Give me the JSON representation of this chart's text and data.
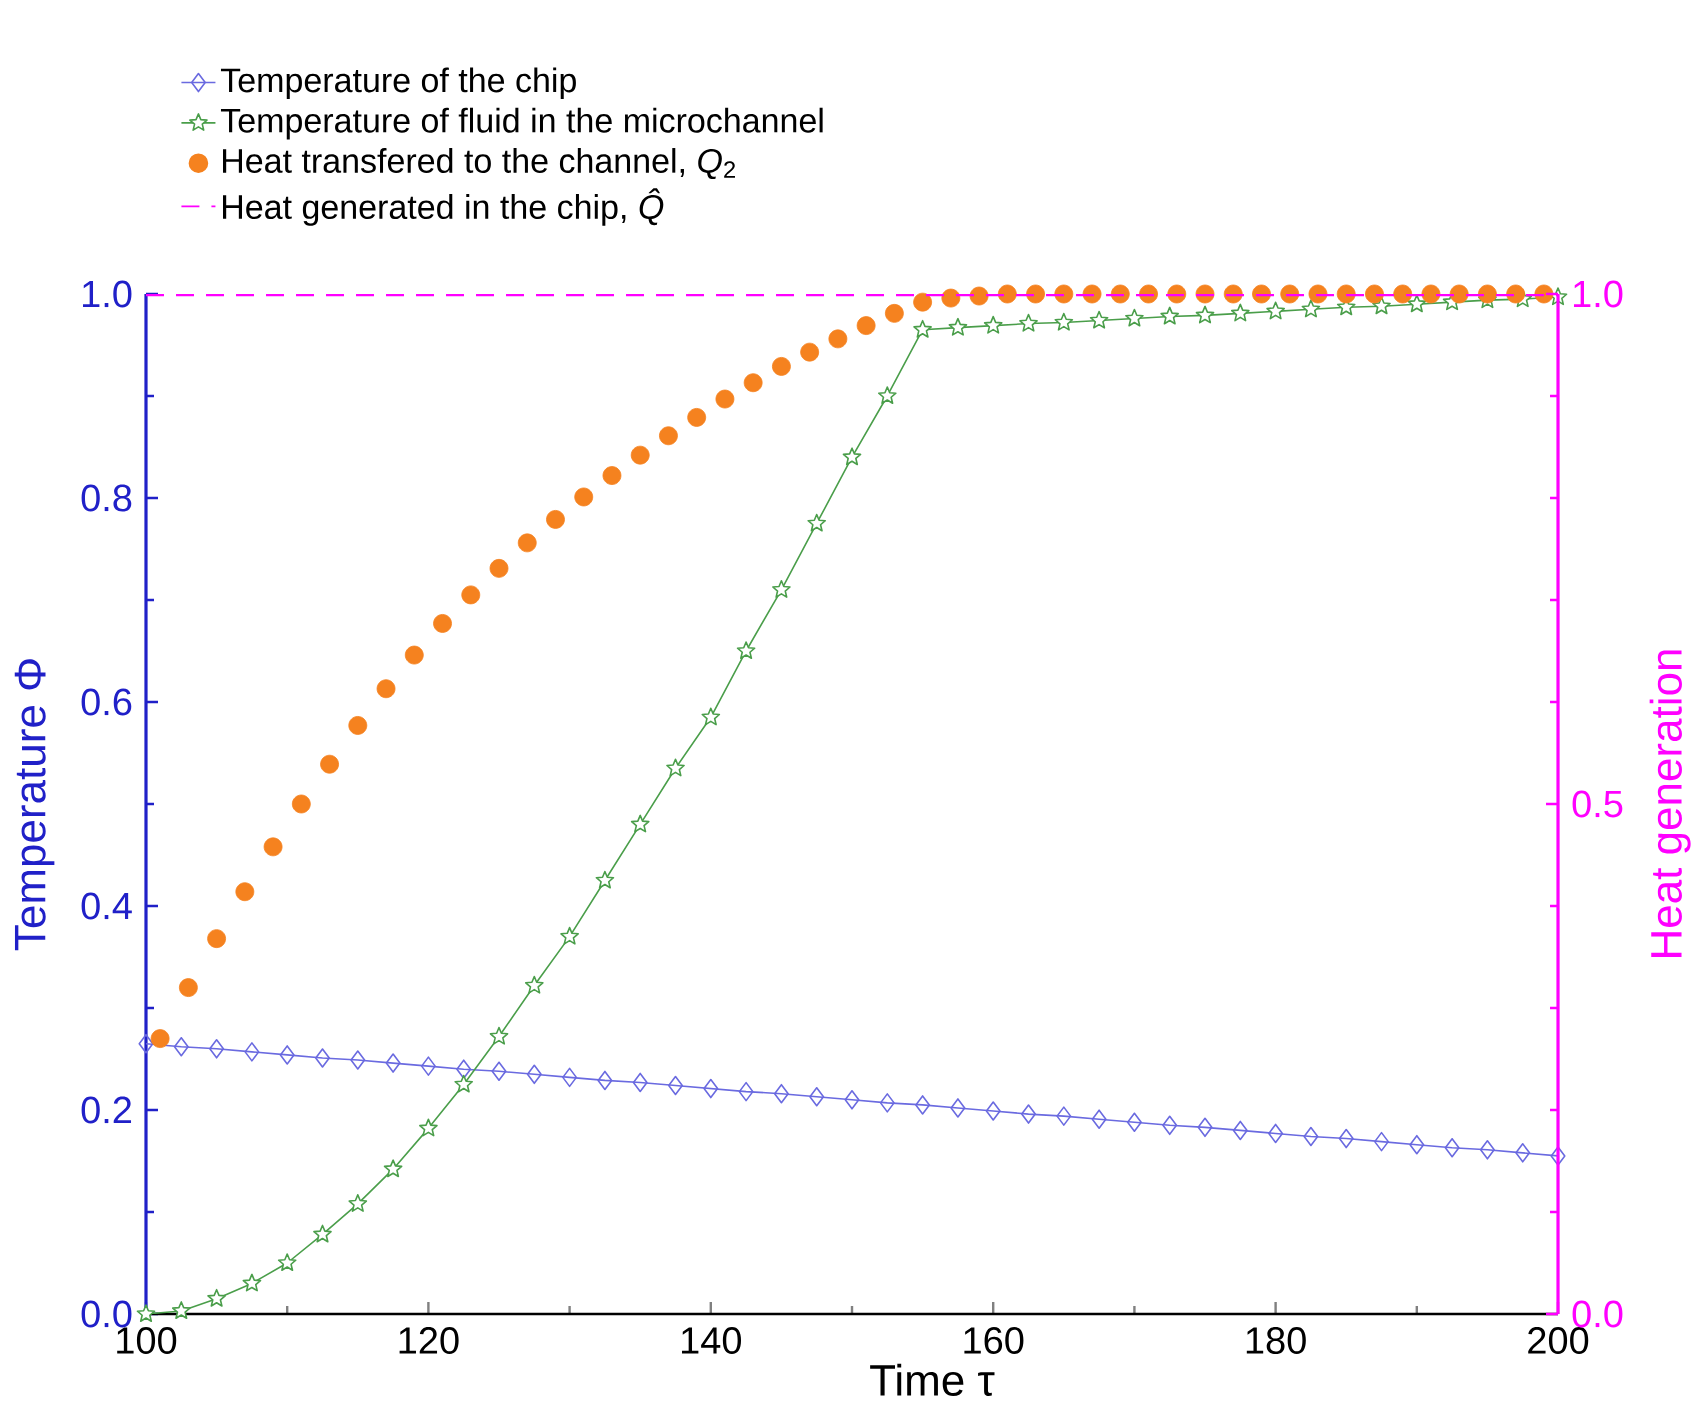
{
  "chart_data": {
    "type": "line",
    "xlabel": "Time τ",
    "ylabel": "Temperature Φ",
    "y2label": "Heat generation",
    "xlim": [
      100,
      200
    ],
    "xticks": [
      100,
      120,
      140,
      160,
      180,
      200
    ],
    "ylim": [
      0,
      1
    ],
    "yticks": [
      {
        "value": 0,
        "label": "0.0"
      },
      {
        "value": 0.2,
        "label": "0.2"
      },
      {
        "value": 0.4,
        "label": "0.4"
      },
      {
        "value": 0.6,
        "label": "0.6"
      },
      {
        "value": 0.8,
        "label": "0.8"
      },
      {
        "value": 1,
        "label": "1.0"
      }
    ],
    "y2lim": [
      0,
      1
    ],
    "y2ticks": [
      {
        "value": 0,
        "label": "0.0"
      },
      {
        "value": 0.5,
        "label": "0.5"
      },
      {
        "value": 1,
        "label": "1.0"
      }
    ],
    "legend": "top",
    "grid": false,
    "series": [
      {
        "name": "Temperature of the chip",
        "type": "line",
        "marker": "diamond",
        "color": "#6a6ae0",
        "x": [
          100,
          102.5,
          105,
          107.5,
          110,
          112.5,
          115,
          117.5,
          120,
          122.5,
          125,
          127.5,
          130,
          132.5,
          135,
          137.5,
          140,
          142.5,
          145,
          147.5,
          150,
          152.5,
          155,
          157.5,
          160,
          162.5,
          165,
          167.5,
          170,
          172.5,
          175,
          177.5,
          180,
          182.5,
          185,
          187.5,
          190,
          192.5,
          195,
          197.5,
          200
        ],
        "values": [
          0.265,
          0.262,
          0.26,
          0.257,
          0.254,
          0.251,
          0.249,
          0.246,
          0.243,
          0.24,
          0.238,
          0.235,
          0.232,
          0.229,
          0.227,
          0.224,
          0.221,
          0.218,
          0.216,
          0.213,
          0.21,
          0.207,
          0.205,
          0.202,
          0.199,
          0.196,
          0.194,
          0.191,
          0.188,
          0.185,
          0.183,
          0.18,
          0.177,
          0.174,
          0.172,
          0.169,
          0.166,
          0.163,
          0.161,
          0.158,
          0.155
        ]
      },
      {
        "name": "Temperature of fluid in the microchannel",
        "type": "line",
        "marker": "star",
        "color": "#4a9e4a",
        "x": [
          100,
          102.5,
          105,
          107.5,
          110,
          112.5,
          115,
          117.5,
          120,
          122.5,
          125,
          127.5,
          130,
          132.5,
          135,
          137.5,
          140,
          142.5,
          145,
          147.5,
          150,
          152.5,
          155,
          157.5,
          160,
          162.5,
          165,
          167.5,
          170,
          172.5,
          175,
          177.5,
          180,
          182.5,
          185,
          187.5,
          190,
          192.5,
          195,
          197.5,
          200
        ],
        "values": [
          0,
          0.003,
          0.015,
          0.03,
          0.05,
          0.078,
          0.108,
          0.142,
          0.182,
          0.225,
          0.272,
          0.322,
          0.37,
          0.425,
          0.48,
          0.535,
          0.585,
          0.65,
          0.71,
          0.775,
          0.84,
          0.9,
          0.965,
          0.967,
          0.969,
          0.971,
          0.972,
          0.974,
          0.976,
          0.978,
          0.979,
          0.981,
          0.983,
          0.985,
          0.987,
          0.988,
          0.99,
          0.992,
          0.994,
          0.995,
          0.997
        ]
      },
      {
        "name": "Heat transfered to the channel, *Q*$_{2}$",
        "type": "scatter",
        "marker": "circle",
        "color": "#f5821f",
        "x": [
          101,
          103,
          105,
          107,
          109,
          111,
          113,
          115,
          117,
          119,
          121,
          123,
          125,
          127,
          129,
          131,
          133,
          135,
          137,
          139,
          141,
          143,
          145,
          147,
          149,
          151,
          153,
          155,
          157,
          159,
          161,
          163,
          165,
          167,
          169,
          171,
          173,
          175,
          177,
          179,
          181,
          183,
          185,
          187,
          189,
          191,
          193,
          195,
          197,
          199
        ],
        "values": [
          0.27,
          0.32,
          0.368,
          0.414,
          0.458,
          0.5,
          0.539,
          0.577,
          0.613,
          0.646,
          0.677,
          0.705,
          0.731,
          0.756,
          0.779,
          0.801,
          0.822,
          0.842,
          0.861,
          0.879,
          0.897,
          0.913,
          0.929,
          0.943,
          0.956,
          0.969,
          0.981,
          0.992,
          0.996,
          0.998,
          1,
          1,
          1,
          1,
          1,
          1,
          1,
          1,
          1,
          1,
          1,
          1,
          1,
          1,
          1,
          1,
          1,
          1,
          1,
          1
        ]
      },
      {
        "name": "Heat generated in the chip, *Q̂*",
        "type": "line",
        "line_style": "dashed",
        "marker": "none",
        "axis": "y2",
        "color": "#ff00ff",
        "x": [
          100,
          200
        ],
        "values": [
          1,
          1
        ]
      }
    ]
  }
}
